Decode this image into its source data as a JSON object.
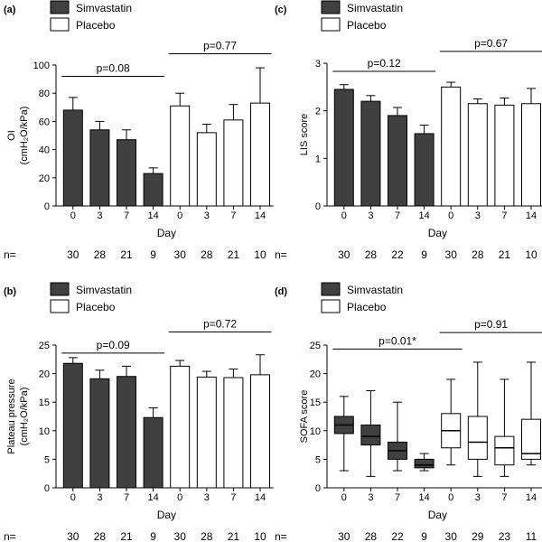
{
  "chart_data": [
    {
      "panel": "(a)",
      "type": "bar",
      "legend": [
        "Simvastatin",
        "Placebo"
      ],
      "colors": {
        "simvastatin": "#404040",
        "placebo": "#ffffff"
      },
      "categories": [
        "0",
        "3",
        "7",
        "14",
        "0",
        "3",
        "7",
        "14"
      ],
      "groups": [
        "Simvastatin",
        "Simvastatin",
        "Simvastatin",
        "Simvastatin",
        "Placebo",
        "Placebo",
        "Placebo",
        "Placebo"
      ],
      "values": [
        68,
        54,
        47,
        23,
        71,
        52,
        61,
        73
      ],
      "errors": [
        9,
        6,
        7,
        4,
        9,
        6,
        11,
        25
      ],
      "ylabel": [
        "OI",
        "(cmH₂O/kPa)"
      ],
      "xlabel": "Day",
      "ylim": [
        0,
        100
      ],
      "yticks": [
        0,
        20,
        40,
        60,
        80,
        100
      ],
      "n_label": "n=",
      "n": [
        "30",
        "28",
        "21",
        "9",
        "30",
        "28",
        "21",
        "10"
      ],
      "annotations": [
        {
          "text": "p=0.08",
          "from": 0,
          "to": 3,
          "level": 92
        },
        {
          "text": "p=0.77",
          "from": 4,
          "to": 7,
          "level": 108
        }
      ]
    },
    {
      "panel": "(b)",
      "type": "bar",
      "legend": [
        "Simvastatin",
        "Placebo"
      ],
      "colors": {
        "simvastatin": "#404040",
        "placebo": "#ffffff"
      },
      "categories": [
        "0",
        "3",
        "7",
        "14",
        "0",
        "3",
        "7",
        "14"
      ],
      "groups": [
        "Simvastatin",
        "Simvastatin",
        "Simvastatin",
        "Simvastatin",
        "Placebo",
        "Placebo",
        "Placebo",
        "Placebo"
      ],
      "values": [
        21.8,
        19.1,
        19.5,
        12.3,
        21.3,
        19.4,
        19.3,
        19.8
      ],
      "errors": [
        1.0,
        1.5,
        1.8,
        1.7,
        1.0,
        1.0,
        1.5,
        3.5
      ],
      "ylabel": [
        "Plateau pressure",
        "(cmH₂O/kPa)"
      ],
      "xlabel": "Day",
      "ylim": [
        0,
        25
      ],
      "yticks": [
        0,
        5,
        10,
        15,
        20,
        25
      ],
      "n_label": "n=",
      "n": [
        "30",
        "28",
        "21",
        "9",
        "30",
        "28",
        "21",
        "10"
      ],
      "annotations": [
        {
          "text": "p=0.09",
          "from": 0,
          "to": 3,
          "level": 23.6
        },
        {
          "text": "p=0.72",
          "from": 4,
          "to": 7,
          "level": 27.3
        }
      ]
    },
    {
      "panel": "(c)",
      "type": "bar",
      "legend": [
        "Simvastatin",
        "Placebo"
      ],
      "colors": {
        "simvastatin": "#404040",
        "placebo": "#ffffff"
      },
      "categories": [
        "0",
        "3",
        "7",
        "14",
        "0",
        "3",
        "7",
        "14"
      ],
      "groups": [
        "Simvastatin",
        "Simvastatin",
        "Simvastatin",
        "Simvastatin",
        "Placebo",
        "Placebo",
        "Placebo",
        "Placebo"
      ],
      "values": [
        2.45,
        2.2,
        1.9,
        1.52,
        2.5,
        2.15,
        2.12,
        2.15
      ],
      "errors": [
        0.1,
        0.12,
        0.17,
        0.18,
        0.1,
        0.1,
        0.15,
        0.32
      ],
      "ylabel": [
        "LIS score"
      ],
      "xlabel": "Day",
      "ylim": [
        0,
        3
      ],
      "yticks": [
        0,
        1,
        2,
        3
      ],
      "n_label": "n=",
      "n": [
        "30",
        "28",
        "22",
        "9",
        "30",
        "28",
        "21",
        "10"
      ],
      "annotations": [
        {
          "text": "p=0.12",
          "from": 0,
          "to": 3,
          "level": 2.83
        },
        {
          "text": "p=0.67",
          "from": 4,
          "to": 7,
          "level": 3.25
        }
      ]
    },
    {
      "panel": "(d)",
      "type": "box",
      "legend": [
        "Simvastatin",
        "Placebo"
      ],
      "colors": {
        "simvastatin": "#404040",
        "placebo": "#ffffff"
      },
      "categories": [
        "0",
        "3",
        "7",
        "14",
        "0",
        "3",
        "7",
        "14"
      ],
      "groups": [
        "Simvastatin",
        "Simvastatin",
        "Simvastatin",
        "Simvastatin",
        "Placebo",
        "Placebo",
        "Placebo",
        "Placebo"
      ],
      "boxes": [
        {
          "min": 3,
          "q1": 9.5,
          "median": 11,
          "q3": 12.5,
          "max": 16
        },
        {
          "min": 2,
          "q1": 7.5,
          "median": 9,
          "q3": 11,
          "max": 17
        },
        {
          "min": 3,
          "q1": 5,
          "median": 6.5,
          "q3": 8,
          "max": 15
        },
        {
          "min": 3,
          "q1": 3.5,
          "median": 4,
          "q3": 5,
          "max": 6
        },
        {
          "min": 4,
          "q1": 7,
          "median": 10,
          "q3": 13,
          "max": 19
        },
        {
          "min": 2,
          "q1": 5,
          "median": 8,
          "q3": 12.5,
          "max": 22
        },
        {
          "min": 2,
          "q1": 4,
          "median": 7,
          "q3": 9,
          "max": 19
        },
        {
          "min": 4,
          "q1": 5,
          "median": 6,
          "q3": 12,
          "max": 22
        }
      ],
      "ylabel": [
        "SOFA score"
      ],
      "xlabel": "Day",
      "ylim": [
        0,
        25
      ],
      "yticks": [
        0,
        5,
        10,
        15,
        20,
        25
      ],
      "n_label": "n=",
      "n": [
        "30",
        "28",
        "22",
        "9",
        "30",
        "29",
        "23",
        "11"
      ],
      "annotations": [
        {
          "text": "p=0.01*",
          "from": 0,
          "to": 4,
          "level": 24.3
        },
        {
          "text": "p=0.91",
          "from": 4,
          "to": 7,
          "level": 27.2
        }
      ]
    }
  ]
}
